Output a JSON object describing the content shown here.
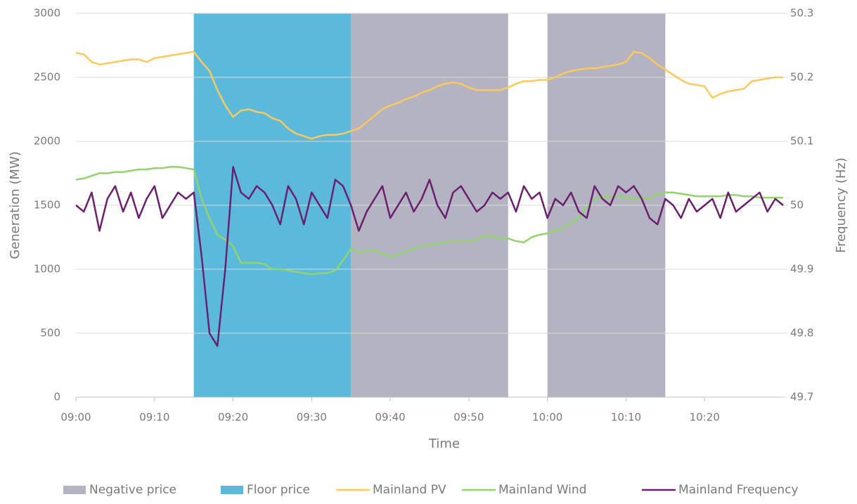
{
  "chart_data": {
    "type": "line",
    "x_label": "Time",
    "y_label": "Generation (MW)",
    "y2_label": "Frequency (Hz)",
    "x": [
      "09:00",
      "09:01",
      "09:02",
      "09:03",
      "09:04",
      "09:05",
      "09:06",
      "09:07",
      "09:08",
      "09:09",
      "09:10",
      "09:11",
      "09:12",
      "09:13",
      "09:14",
      "09:15",
      "09:16",
      "09:17",
      "09:18",
      "09:19",
      "09:20",
      "09:21",
      "09:22",
      "09:23",
      "09:24",
      "09:25",
      "09:26",
      "09:27",
      "09:28",
      "09:29",
      "09:30",
      "09:31",
      "09:32",
      "09:33",
      "09:34",
      "09:35",
      "09:36",
      "09:37",
      "09:38",
      "09:39",
      "09:40",
      "09:41",
      "09:42",
      "09:43",
      "09:44",
      "09:45",
      "09:46",
      "09:47",
      "09:48",
      "09:49",
      "09:50",
      "09:51",
      "09:52",
      "09:53",
      "09:54",
      "09:55",
      "09:56",
      "09:57",
      "09:58",
      "09:59",
      "10:00",
      "10:01",
      "10:02",
      "10:03",
      "10:04",
      "10:05",
      "10:06",
      "10:07",
      "10:08",
      "10:09",
      "10:10",
      "10:11",
      "10:12",
      "10:13",
      "10:14",
      "10:15",
      "10:16",
      "10:17",
      "10:18",
      "10:19",
      "10:20",
      "10:21",
      "10:22",
      "10:23",
      "10:24",
      "10:25",
      "10:26",
      "10:27",
      "10:28",
      "10:29",
      "10:30"
    ],
    "xlim": [
      "09:00",
      "10:30"
    ],
    "xticks": [
      "09:00",
      "09:10",
      "09:20",
      "09:30",
      "09:40",
      "09:50",
      "10:00",
      "10:10",
      "10:20"
    ],
    "ylim": [
      0,
      3000
    ],
    "yticks": [
      0,
      500,
      1000,
      1500,
      2000,
      2500,
      3000
    ],
    "y2lim": [
      49.7,
      50.3
    ],
    "y2ticks": [
      49.7,
      49.8,
      49.9,
      50,
      50.1,
      50.2,
      50.3
    ],
    "grid": true,
    "bands": [
      {
        "name": "Negative price",
        "color": "#b3b3c1",
        "ranges": [
          [
            "09:35",
            "09:55"
          ],
          [
            "10:00",
            "10:15"
          ]
        ]
      },
      {
        "name": "Floor price",
        "color": "#5bbadb",
        "ranges": [
          [
            "09:15",
            "09:35"
          ]
        ]
      }
    ],
    "series": [
      {
        "name": "Mainland PV",
        "color": "#fcc95c",
        "values": [
          2690,
          2680,
          2620,
          2600,
          2610,
          2620,
          2630,
          2640,
          2640,
          2620,
          2650,
          2660,
          2670,
          2680,
          2690,
          2700,
          2620,
          2550,
          2400,
          2280,
          2190,
          2240,
          2250,
          2230,
          2220,
          2180,
          2160,
          2100,
          2060,
          2040,
          2020,
          2040,
          2050,
          2050,
          2060,
          2080,
          2100,
          2150,
          2200,
          2250,
          2280,
          2300,
          2330,
          2350,
          2380,
          2400,
          2430,
          2450,
          2460,
          2450,
          2420,
          2400,
          2400,
          2400,
          2400,
          2420,
          2450,
          2470,
          2470,
          2480,
          2480,
          2500,
          2530,
          2550,
          2560,
          2570,
          2570,
          2580,
          2590,
          2600,
          2620,
          2700,
          2690,
          2650,
          2600,
          2560,
          2520,
          2480,
          2450,
          2440,
          2430,
          2340,
          2370,
          2390,
          2400,
          2410,
          2470,
          2480,
          2490,
          2500,
          2500
        ]
      },
      {
        "name": "Mainland Wind",
        "color": "#92d36e",
        "values": [
          1700,
          1710,
          1730,
          1750,
          1750,
          1760,
          1760,
          1770,
          1780,
          1780,
          1790,
          1790,
          1800,
          1800,
          1790,
          1780,
          1550,
          1400,
          1270,
          1230,
          1180,
          1050,
          1050,
          1050,
          1040,
          1000,
          1000,
          990,
          980,
          970,
          960,
          970,
          970,
          990,
          1070,
          1160,
          1130,
          1140,
          1150,
          1120,
          1100,
          1110,
          1140,
          1160,
          1180,
          1190,
          1200,
          1210,
          1220,
          1220,
          1220,
          1230,
          1260,
          1260,
          1240,
          1240,
          1220,
          1210,
          1250,
          1270,
          1280,
          1300,
          1320,
          1360,
          1400,
          1480,
          1550,
          1560,
          1560,
          1570,
          1560,
          1550,
          1560,
          1550,
          1590,
          1600,
          1600,
          1590,
          1580,
          1570,
          1570,
          1570,
          1570,
          1580,
          1580,
          1570,
          1570,
          1560,
          1560,
          1560,
          1560
        ]
      },
      {
        "name": "Mainland Frequency",
        "color": "#6b1f6f",
        "axis": "y2",
        "values": [
          50.0,
          49.99,
          50.02,
          49.96,
          50.01,
          50.03,
          49.99,
          50.02,
          49.98,
          50.01,
          50.03,
          49.98,
          50.0,
          50.02,
          50.01,
          50.02,
          49.92,
          49.8,
          49.78,
          49.9,
          50.06,
          50.02,
          50.01,
          50.03,
          50.02,
          50.0,
          49.97,
          50.03,
          50.01,
          49.97,
          50.02,
          50.0,
          49.98,
          50.04,
          50.03,
          50.0,
          49.96,
          49.99,
          50.01,
          50.03,
          49.98,
          50.0,
          50.02,
          49.99,
          50.01,
          50.04,
          50.0,
          49.98,
          50.02,
          50.03,
          50.01,
          49.99,
          50.0,
          50.02,
          50.01,
          50.02,
          49.99,
          50.03,
          50.01,
          50.02,
          49.98,
          50.01,
          50.0,
          50.02,
          49.99,
          49.98,
          50.03,
          50.01,
          50.0,
          50.03,
          50.02,
          50.03,
          50.01,
          49.98,
          49.97,
          50.01,
          50.0,
          49.98,
          50.01,
          49.99,
          50.0,
          50.01,
          49.98,
          50.02,
          49.99,
          50.0,
          50.01,
          50.02,
          49.99,
          50.01,
          50.0
        ]
      }
    ]
  }
}
